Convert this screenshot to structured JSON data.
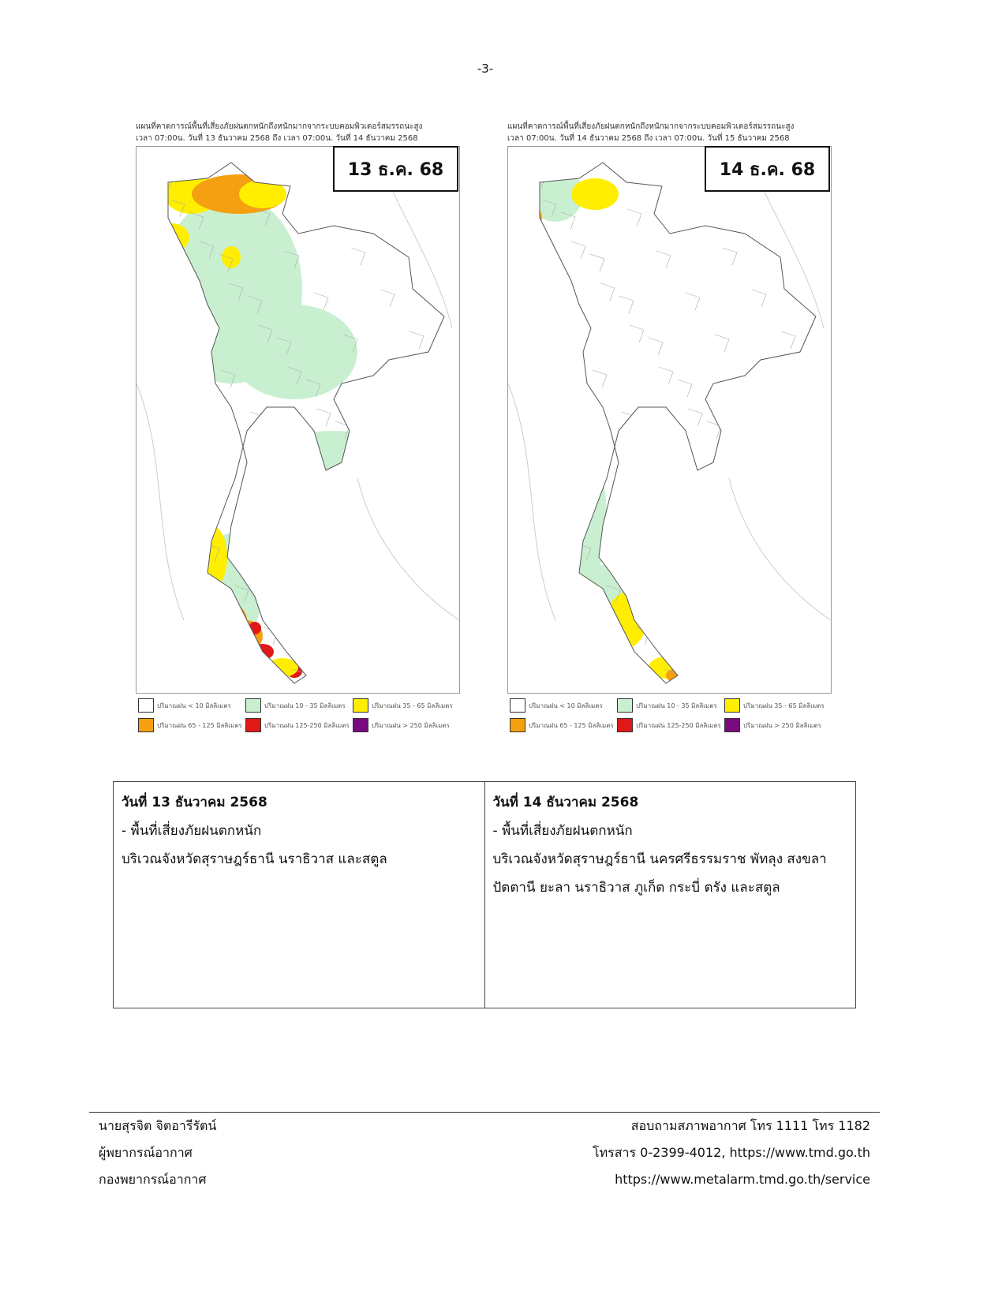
{
  "page_number": "-3-",
  "maps": [
    {
      "header": [
        "แผนที่คาดการณ์พื้นที่เสี่ยงภัยฝนตกหนักถึงหนักมากจากระบบคอมพิวเตอร์สมรรถนะสูง",
        "เวลา 07:00น. วันที่ 13 ธันวาคม 2568 ถึง เวลา 07:00น. วันที่ 14 ธันวาคม 2568"
      ],
      "date_label": "13 ธ.ค. 68"
    },
    {
      "header": [
        "แผนที่คาดการณ์พื้นที่เสี่ยงภัยฝนตกหนักถึงหนักมากจากระบบคอมพิวเตอร์สมรรถนะสูง",
        "เวลา 07:00น. วันที่ 14 ธันวาคม 2568 ถึง เวลา 07:00น. วันที่ 15 ธันวาคม 2568"
      ],
      "date_label": "14 ธ.ค. 68"
    }
  ],
  "legend": [
    {
      "label": "ปริมาณฝน < 10 มิลลิเมตร",
      "color": "#ffffff"
    },
    {
      "label": "ปริมาณฝน 10 - 35 มิลลิเมตร",
      "color": "#c8f0d0"
    },
    {
      "label": "ปริมาณฝน 35 - 65 มิลลิเมตร",
      "color": "#ffee00"
    },
    {
      "label": "ปริมาณฝน 65 - 125 มิลลิเมตร",
      "color": "#f5a010"
    },
    {
      "label": "ปริมาณฝน 125-250 มิลลิเมตร",
      "color": "#e01818"
    },
    {
      "label": "ปริมาณฝน > 250 มิลลิเมตร",
      "color": "#7a0a80"
    }
  ],
  "table": {
    "columns": [
      {
        "title": "วันที่ 13 ธันวาคม 2568",
        "lines": [
          "- พื้นที่เสี่ยงภัยฝนตกหนัก",
          "บริเวณจังหวัดสุราษฎร์ธานี นราธิวาส และสตูล"
        ]
      },
      {
        "title": "วันที่ 14 ธันวาคม 2568",
        "lines": [
          "- พื้นที่เสี่ยงภัยฝนตกหนัก",
          "บริเวณจังหวัดสุราษฎร์ธานี นครศรีธรรมราช พัทลุง สงขลา",
          "ปัตตานี ยะลา นราธิวาส ภูเก็ต กระบี่ ตรัง และสตูล"
        ]
      }
    ]
  },
  "footer": {
    "left": [
      "นายสุรจิต จิตอารีรัตน์",
      "ผู้พยากรณ์อากาศ",
      "กองพยากรณ์อากาศ"
    ],
    "right": [
      "สอบถามสภาพอากาศ โทร 1111 โทร 1182",
      "โทรสาร 0-2399-4012, https://www.tmd.go.th",
      "https://www.metalarm.tmd.go.th/service"
    ]
  }
}
